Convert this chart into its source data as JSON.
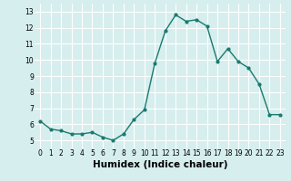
{
  "x": [
    0,
    1,
    2,
    3,
    4,
    5,
    6,
    7,
    8,
    9,
    10,
    11,
    12,
    13,
    14,
    15,
    16,
    17,
    18,
    19,
    20,
    21,
    22,
    23
  ],
  "y": [
    6.2,
    5.7,
    5.6,
    5.4,
    5.4,
    5.5,
    5.2,
    5.0,
    5.4,
    6.3,
    6.9,
    9.8,
    11.8,
    12.8,
    12.4,
    12.5,
    12.1,
    9.9,
    10.7,
    9.9,
    9.5,
    8.5,
    6.6,
    6.6
  ],
  "line_color": "#1a7a6e",
  "marker": "o",
  "markersize": 2.0,
  "linewidth": 1.0,
  "xlabel": "Humidex (Indice chaleur)",
  "xlim": [
    -0.5,
    23.5
  ],
  "ylim": [
    4.5,
    13.5
  ],
  "yticks": [
    5,
    6,
    7,
    8,
    9,
    10,
    11,
    12,
    13
  ],
  "xticks": [
    0,
    1,
    2,
    3,
    4,
    5,
    6,
    7,
    8,
    9,
    10,
    11,
    12,
    13,
    14,
    15,
    16,
    17,
    18,
    19,
    20,
    21,
    22,
    23
  ],
  "xtick_labels": [
    "0",
    "1",
    "2",
    "3",
    "4",
    "5",
    "6",
    "7",
    "8",
    "9",
    "10",
    "11",
    "12",
    "13",
    "14",
    "15",
    "16",
    "17",
    "18",
    "19",
    "20",
    "21",
    "22",
    "23"
  ],
  "background_color": "#d6eeee",
  "grid_color": "#ffffff",
  "tick_fontsize": 5.5,
  "xlabel_fontsize": 7.5
}
